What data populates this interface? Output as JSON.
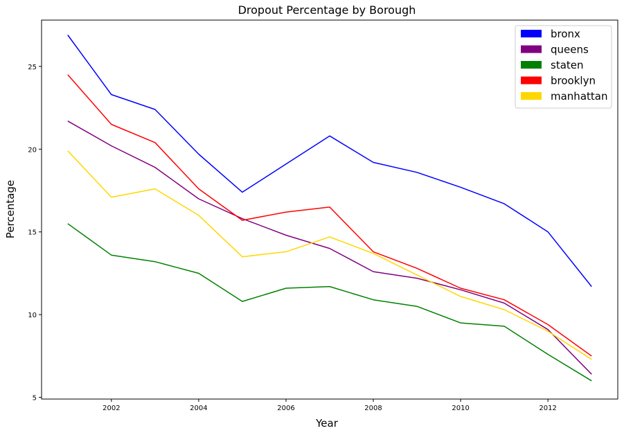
{
  "chart_data": {
    "type": "line",
    "title": "Dropout Percentage by Borough",
    "xlabel": "Year",
    "ylabel": "Percentage",
    "xlim": [
      2000.4,
      2013.6
    ],
    "ylim": [
      4.9,
      27.8
    ],
    "xticks": [
      2002,
      2004,
      2006,
      2008,
      2010,
      2012
    ],
    "yticks": [
      5,
      10,
      15,
      20,
      25
    ],
    "legend_position": "top-right",
    "grid": false,
    "x": [
      2001,
      2002,
      2003,
      2004,
      2005,
      2006,
      2007,
      2008,
      2009,
      2010,
      2011,
      2012,
      2013
    ],
    "series": [
      {
        "name": "bronx",
        "color": "#0000ff",
        "values": [
          26.9,
          23.3,
          22.4,
          19.7,
          17.4,
          19.1,
          20.8,
          19.2,
          18.6,
          17.7,
          16.7,
          15.0,
          11.7
        ]
      },
      {
        "name": "queens",
        "color": "#800080",
        "values": [
          21.7,
          20.2,
          18.9,
          17.0,
          15.8,
          14.8,
          14.0,
          12.6,
          12.2,
          11.5,
          10.7,
          9.1,
          6.4
        ]
      },
      {
        "name": "staten",
        "color": "#008000",
        "values": [
          15.5,
          13.6,
          13.2,
          12.5,
          10.8,
          11.6,
          11.7,
          10.9,
          10.5,
          9.5,
          9.3,
          7.6,
          6.0
        ]
      },
      {
        "name": "brooklyn",
        "color": "#ff0000",
        "values": [
          24.5,
          21.5,
          20.4,
          17.6,
          15.7,
          16.2,
          16.5,
          13.8,
          12.8,
          11.6,
          10.9,
          9.4,
          7.5
        ]
      },
      {
        "name": "manhattan",
        "color": "#ffd700",
        "values": [
          19.9,
          17.1,
          17.6,
          16.0,
          13.5,
          13.8,
          14.7,
          13.7,
          12.4,
          11.1,
          10.3,
          9.0,
          7.3
        ]
      }
    ]
  }
}
